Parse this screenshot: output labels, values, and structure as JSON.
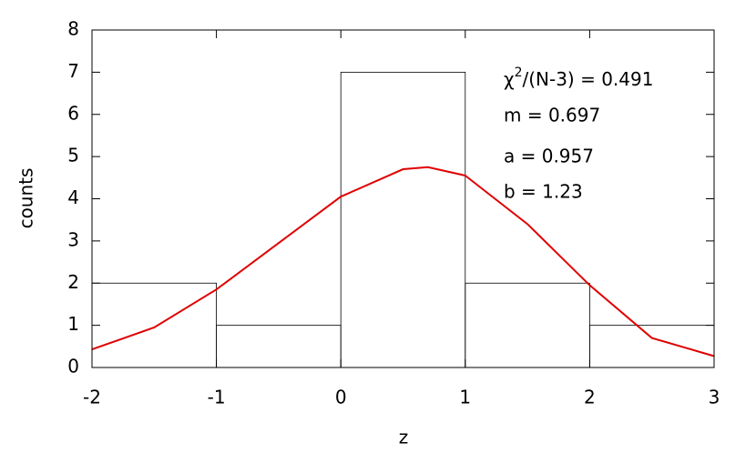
{
  "chart_data": {
    "type": "histogram",
    "bins": [
      -2,
      -1,
      0,
      1,
      2,
      3
    ],
    "values": [
      2,
      1,
      7,
      2,
      1
    ],
    "color": "#000000",
    "xlabel": "z",
    "ylabel": "counts",
    "xlim": [
      -2,
      3
    ],
    "xticks": [
      -2,
      -1,
      0,
      1,
      2,
      3
    ],
    "ylim": [
      0,
      8
    ],
    "yticks": [
      0,
      1,
      2,
      3,
      4,
      5,
      6,
      7,
      8
    ],
    "fit": {
      "color": "#e00000",
      "x": [
        -2,
        -1.5,
        -1,
        -0.5,
        0,
        0.5,
        0.7,
        1,
        1.5,
        2,
        2.5,
        3
      ],
      "values": [
        0.43,
        0.95,
        1.85,
        2.95,
        4.05,
        4.7,
        4.75,
        4.55,
        3.4,
        1.95,
        0.7,
        0.27
      ]
    },
    "chi_label": {
      "base": "χ",
      "sup": "2",
      "rest": "/(N-3) = 0.491"
    },
    "annotations": [
      "m = 0.697",
      "a = 0.957",
      "b = 1.23"
    ]
  }
}
